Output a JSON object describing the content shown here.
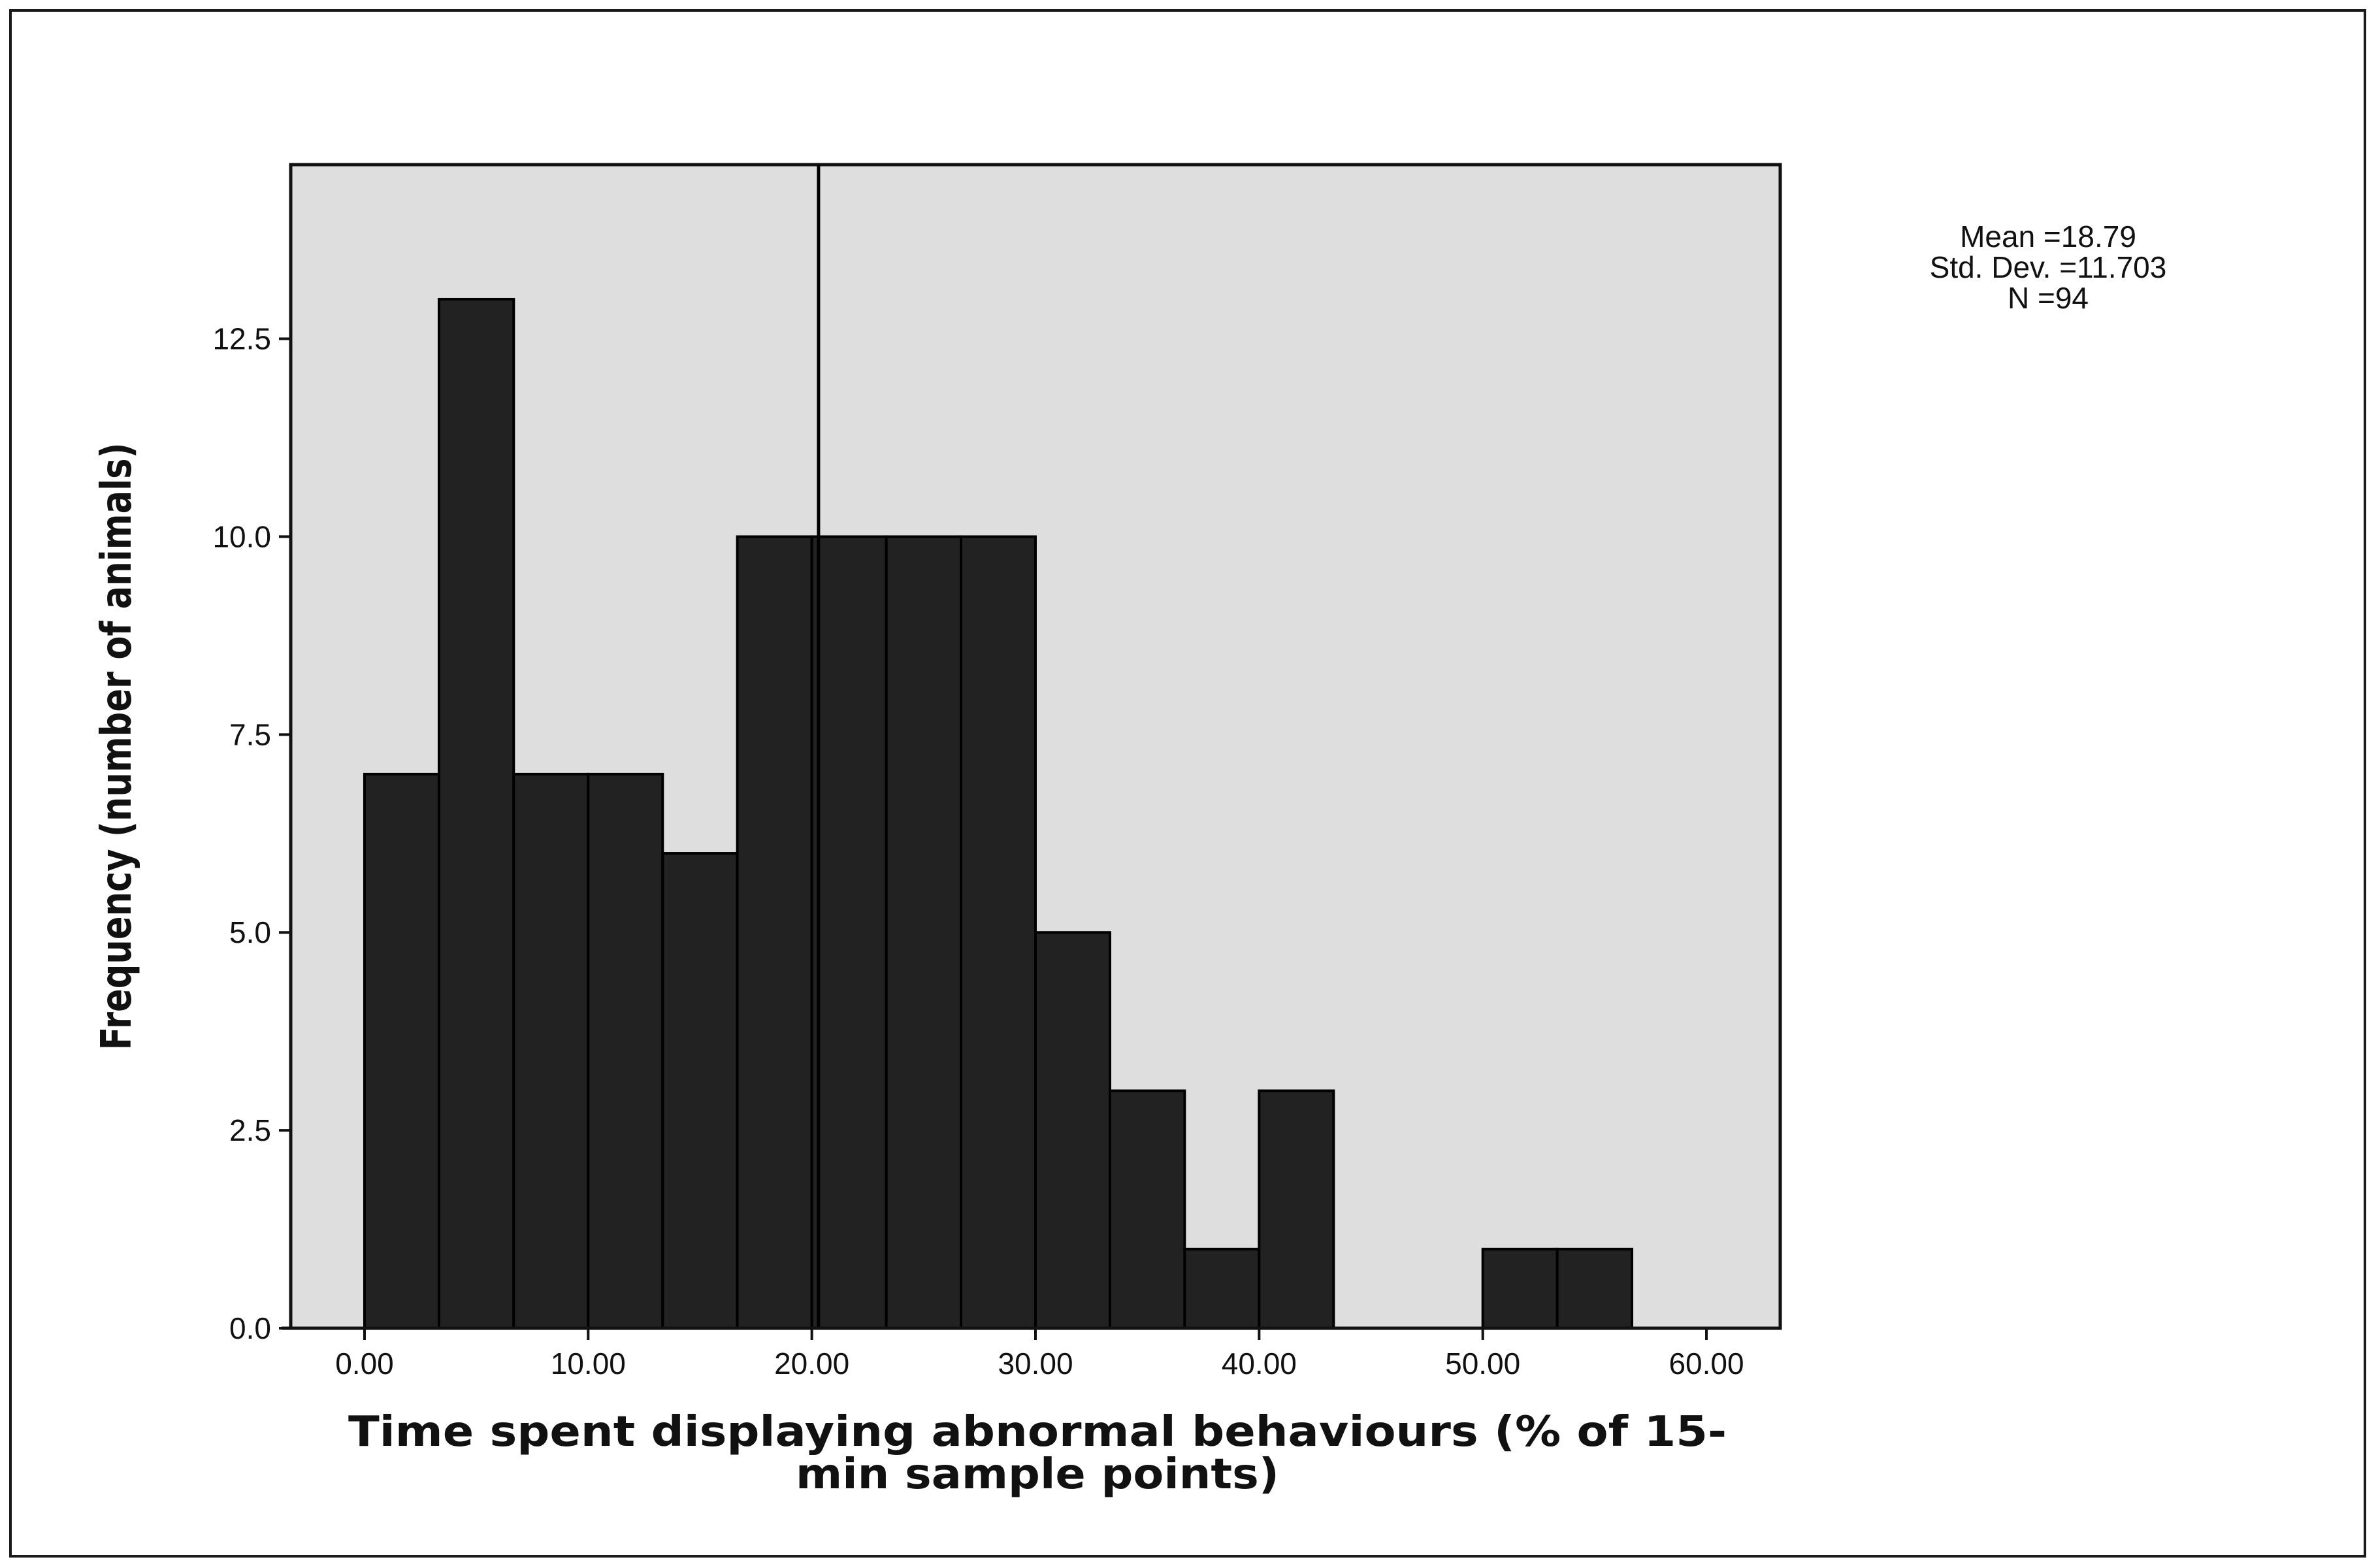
{
  "chart_data": {
    "type": "bar",
    "subtype": "histogram",
    "xlabel_lines": [
      "Time spent displaying abnormal behaviours (% of 15-",
      "min sample points)"
    ],
    "ylabel": "Frequency (number of animals)",
    "xlim": [
      -3.3,
      63.3
    ],
    "ylim": [
      0,
      14.7
    ],
    "x_ticks": [
      0,
      10,
      20,
      30,
      40,
      50,
      60
    ],
    "x_tick_labels": [
      "0.00",
      "10.00",
      "20.00",
      "30.00",
      "40.00",
      "50.00",
      "60.00"
    ],
    "y_ticks": [
      0,
      2.5,
      5,
      7.5,
      10,
      12.5
    ],
    "y_tick_labels": [
      "0.0",
      "2.5",
      "5.0",
      "7.5",
      "10.0",
      "12.5"
    ],
    "bin_width": 3.33,
    "bins": [
      {
        "start": 0.0,
        "end": 3.33,
        "count": 7
      },
      {
        "start": 3.33,
        "end": 6.67,
        "count": 13
      },
      {
        "start": 6.67,
        "end": 10.0,
        "count": 7
      },
      {
        "start": 10.0,
        "end": 13.33,
        "count": 7
      },
      {
        "start": 13.33,
        "end": 16.67,
        "count": 6
      },
      {
        "start": 16.67,
        "end": 20.0,
        "count": 10
      },
      {
        "start": 20.0,
        "end": 23.33,
        "count": 10
      },
      {
        "start": 23.33,
        "end": 26.67,
        "count": 10
      },
      {
        "start": 26.67,
        "end": 30.0,
        "count": 10
      },
      {
        "start": 30.0,
        "end": 33.33,
        "count": 5
      },
      {
        "start": 33.33,
        "end": 36.67,
        "count": 3
      },
      {
        "start": 36.67,
        "end": 40.0,
        "count": 1
      },
      {
        "start": 40.0,
        "end": 43.33,
        "count": 3
      },
      {
        "start": 43.33,
        "end": 46.67,
        "count": 0
      },
      {
        "start": 46.67,
        "end": 50.0,
        "count": 0
      },
      {
        "start": 50.0,
        "end": 53.33,
        "count": 1
      },
      {
        "start": 53.33,
        "end": 56.67,
        "count": 1
      }
    ],
    "reference_line_x": 20.3,
    "stats": {
      "mean": "Mean =18.79",
      "std_dev": "Std. Dev. =11.703",
      "n": "N =94"
    },
    "grid": false,
    "colors": {
      "plot_background": "#dedede",
      "bar_fill": "#222222",
      "bar_stroke": "#000000"
    }
  }
}
